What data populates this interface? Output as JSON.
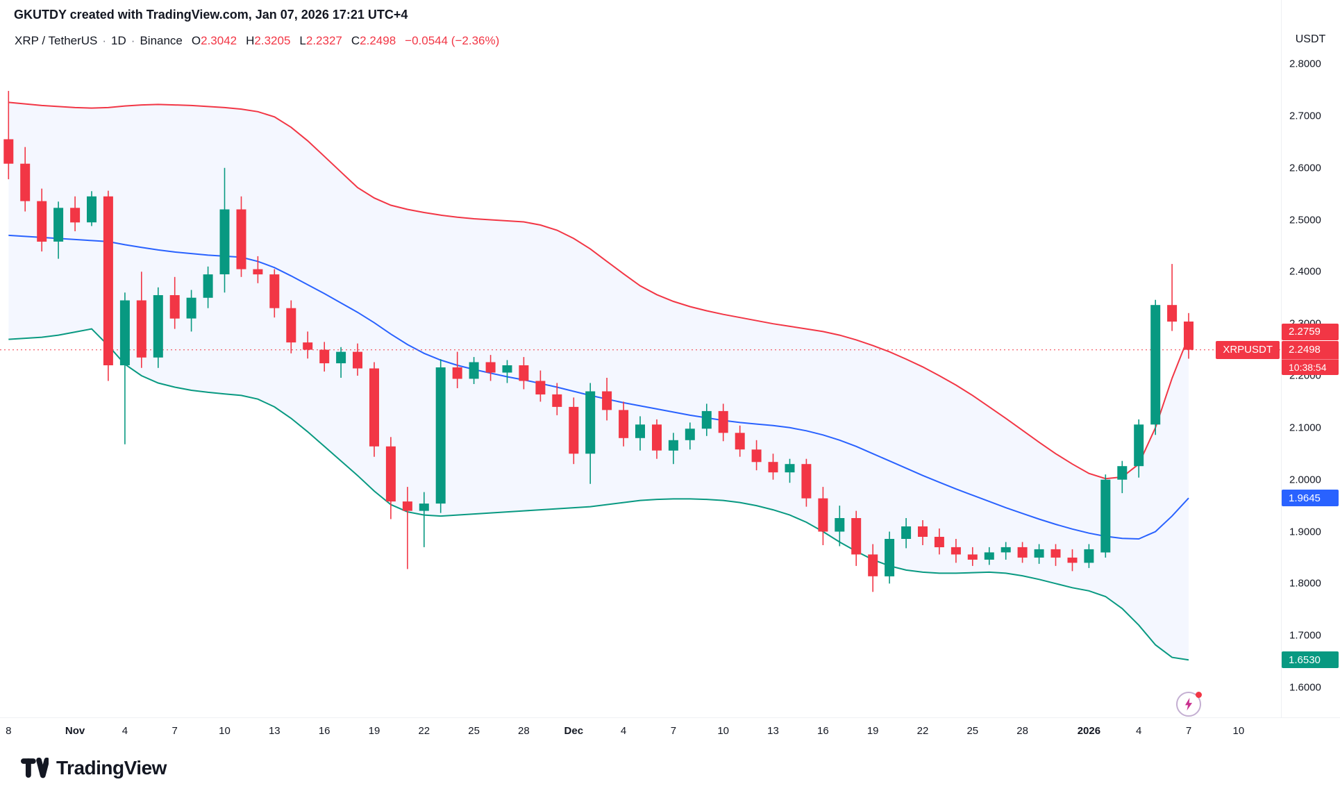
{
  "attribution": "GKUTDY created with TradingView.com, Jan 07, 2026 17:21 UTC+4",
  "legend": {
    "symbol": "XRP / TetherUS",
    "sep": "·",
    "interval": "1D",
    "exchange": "Binance",
    "o_label": "O",
    "o": "2.3042",
    "h_label": "H",
    "h": "2.3205",
    "l_label": "L",
    "l": "2.2327",
    "c_label": "C",
    "c": "2.2498",
    "change": "−0.0544 (−2.36%)",
    "values_color": "#F23645"
  },
  "price_axis": {
    "currency": "USDT",
    "labels": [
      "2.8000",
      "2.7000",
      "2.6000",
      "2.5000",
      "2.4000",
      "2.3000",
      "2.2000",
      "2.1000",
      "2.0000",
      "1.9000",
      "1.8000",
      "1.7000",
      "1.6000"
    ]
  },
  "time_axis": {
    "ticks": [
      [
        "8",
        0,
        0
      ],
      [
        "Nov",
        4,
        1
      ],
      [
        "4",
        7,
        0
      ],
      [
        "7",
        10,
        0
      ],
      [
        "10",
        13,
        0
      ],
      [
        "13",
        16,
        0
      ],
      [
        "16",
        19,
        0
      ],
      [
        "19",
        22,
        0
      ],
      [
        "22",
        25,
        0
      ],
      [
        "25",
        28,
        0
      ],
      [
        "28",
        31,
        0
      ],
      [
        "Dec",
        34,
        1
      ],
      [
        "4",
        37,
        0
      ],
      [
        "7",
        40,
        0
      ],
      [
        "10",
        43,
        0
      ],
      [
        "13",
        46,
        0
      ],
      [
        "16",
        49,
        0
      ],
      [
        "19",
        52,
        0
      ],
      [
        "22",
        55,
        0
      ],
      [
        "25",
        58,
        0
      ],
      [
        "28",
        61,
        0
      ],
      [
        "2026",
        65,
        1
      ],
      [
        "4",
        68,
        0
      ],
      [
        "7",
        71,
        0
      ],
      [
        "10",
        74,
        0
      ]
    ]
  },
  "badges": {
    "upper_band": {
      "text": "2.2759",
      "price": 2.2759,
      "color": "#F23645"
    },
    "symbol_label": "XRPUSDT",
    "last_price": {
      "text": "2.2498",
      "price": 2.2498,
      "color": "#F23645"
    },
    "countdown": "10:38:54",
    "basis_band": {
      "text": "1.9645",
      "price": 1.9645,
      "color": "#2962FF"
    },
    "lower_band": {
      "text": "1.6530",
      "price": 1.653,
      "color": "#089981"
    }
  },
  "footer": {
    "brand": "TradingView"
  },
  "ui": {
    "flash_icon": "#C9308F",
    "notification_dot": "#F23645",
    "text": "#131722"
  },
  "chart_data": {
    "type": "candlestick",
    "title": "XRP / TetherUS · 1D · Binance with Bollinger Bands",
    "ylabel": "Price (USDT)",
    "ylim": [
      1.6,
      2.8
    ],
    "indicator": "Bollinger Bands",
    "legend_position": "top-left",
    "grid": false,
    "colors": {
      "up": "#089981",
      "down": "#F23645",
      "upper": "#F23645",
      "basis": "#2962FF",
      "lower": "#089981",
      "band_fill": "rgba(41,98,255,0.05)"
    },
    "candles": [
      [
        "Oct 28",
        2.655,
        2.748,
        2.578,
        2.608
      ],
      [
        "Oct 29",
        2.608,
        2.64,
        2.516,
        2.536
      ],
      [
        "Oct 30",
        2.536,
        2.56,
        2.439,
        2.458
      ],
      [
        "Oct 31",
        2.458,
        2.535,
        2.425,
        2.523
      ],
      [
        "Nov 1",
        2.523,
        2.545,
        2.478,
        2.495
      ],
      [
        "Nov 2",
        2.495,
        2.555,
        2.488,
        2.545
      ],
      [
        "Nov 3",
        2.545,
        2.556,
        2.19,
        2.22
      ],
      [
        "Nov 4",
        2.22,
        2.36,
        2.068,
        2.345
      ],
      [
        "Nov 5",
        2.345,
        2.4,
        2.215,
        2.235
      ],
      [
        "Nov 6",
        2.235,
        2.37,
        2.215,
        2.355
      ],
      [
        "Nov 7",
        2.355,
        2.39,
        2.29,
        2.31
      ],
      [
        "Nov 8",
        2.31,
        2.365,
        2.285,
        2.35
      ],
      [
        "Nov 9",
        2.35,
        2.41,
        2.33,
        2.395
      ],
      [
        "Nov 10",
        2.395,
        2.6,
        2.36,
        2.52
      ],
      [
        "Nov 11",
        2.52,
        2.545,
        2.39,
        2.405
      ],
      [
        "Nov 12",
        2.405,
        2.43,
        2.378,
        2.395
      ],
      [
        "Nov 13",
        2.395,
        2.405,
        2.312,
        2.33
      ],
      [
        "Nov 14",
        2.33,
        2.345,
        2.243,
        2.264
      ],
      [
        "Nov 15",
        2.264,
        2.285,
        2.233,
        2.25
      ],
      [
        "Nov 16",
        2.25,
        2.265,
        2.208,
        2.224
      ],
      [
        "Nov 17",
        2.224,
        2.255,
        2.196,
        2.246
      ],
      [
        "Nov 18",
        2.246,
        2.262,
        2.2,
        2.214
      ],
      [
        "Nov 19",
        2.214,
        2.226,
        2.044,
        2.064
      ],
      [
        "Nov 20",
        2.064,
        2.082,
        1.924,
        1.958
      ],
      [
        "Nov 21",
        1.958,
        1.986,
        1.828,
        1.94
      ],
      [
        "Nov 22",
        1.94,
        1.976,
        1.87,
        1.954
      ],
      [
        "Nov 23",
        1.954,
        2.232,
        1.936,
        2.216
      ],
      [
        "Nov 24",
        2.216,
        2.246,
        2.176,
        2.194
      ],
      [
        "Nov 25",
        2.194,
        2.236,
        2.184,
        2.226
      ],
      [
        "Nov 26",
        2.226,
        2.24,
        2.19,
        2.206
      ],
      [
        "Nov 27",
        2.206,
        2.23,
        2.186,
        2.22
      ],
      [
        "Nov 28",
        2.22,
        2.236,
        2.174,
        2.19
      ],
      [
        "Nov 29",
        2.19,
        2.21,
        2.15,
        2.164
      ],
      [
        "Nov 30",
        2.164,
        2.186,
        2.124,
        2.14
      ],
      [
        "Dec 1",
        2.14,
        2.158,
        2.03,
        2.05
      ],
      [
        "Dec 2",
        2.05,
        2.186,
        1.992,
        2.17
      ],
      [
        "Dec 3",
        2.17,
        2.196,
        2.114,
        2.134
      ],
      [
        "Dec 4",
        2.134,
        2.15,
        2.064,
        2.08
      ],
      [
        "Dec 5",
        2.08,
        2.122,
        2.056,
        2.106
      ],
      [
        "Dec 6",
        2.106,
        2.116,
        2.04,
        2.056
      ],
      [
        "Dec 7",
        2.056,
        2.09,
        2.03,
        2.076
      ],
      [
        "Dec 8",
        2.076,
        2.11,
        2.058,
        2.098
      ],
      [
        "Dec 9",
        2.098,
        2.146,
        2.084,
        2.132
      ],
      [
        "Dec 10",
        2.132,
        2.146,
        2.074,
        2.09
      ],
      [
        "Dec 11",
        2.09,
        2.104,
        2.044,
        2.058
      ],
      [
        "Dec 12",
        2.058,
        2.076,
        2.018,
        2.034
      ],
      [
        "Dec 13",
        2.034,
        2.05,
        2.0,
        2.014
      ],
      [
        "Dec 14",
        2.014,
        2.04,
        1.994,
        2.03
      ],
      [
        "Dec 15",
        2.03,
        2.04,
        1.948,
        1.964
      ],
      [
        "Dec 16",
        1.964,
        1.986,
        1.874,
        1.9
      ],
      [
        "Dec 17",
        1.9,
        1.95,
        1.872,
        1.926
      ],
      [
        "Dec 18",
        1.926,
        1.94,
        1.834,
        1.856
      ],
      [
        "Dec 19",
        1.856,
        1.876,
        1.784,
        1.814
      ],
      [
        "Dec 20",
        1.814,
        1.9,
        1.8,
        1.886
      ],
      [
        "Dec 21",
        1.886,
        1.926,
        1.868,
        1.91
      ],
      [
        "Dec 22",
        1.91,
        1.922,
        1.874,
        1.89
      ],
      [
        "Dec 23",
        1.89,
        1.906,
        1.856,
        1.87
      ],
      [
        "Dec 24",
        1.87,
        1.886,
        1.84,
        1.856
      ],
      [
        "Dec 25",
        1.856,
        1.87,
        1.834,
        1.846
      ],
      [
        "Dec 26",
        1.846,
        1.87,
        1.836,
        1.86
      ],
      [
        "Dec 27",
        1.86,
        1.88,
        1.846,
        1.87
      ],
      [
        "Dec 28",
        1.87,
        1.88,
        1.84,
        1.85
      ],
      [
        "Dec 29",
        1.85,
        1.876,
        1.838,
        1.866
      ],
      [
        "Dec 30",
        1.866,
        1.876,
        1.834,
        1.85
      ],
      [
        "Dec 31",
        1.85,
        1.866,
        1.824,
        1.84
      ],
      [
        "Jan 1",
        1.84,
        1.876,
        1.83,
        1.866
      ],
      [
        "Jan 2",
        1.86,
        2.01,
        1.85,
        2.0
      ],
      [
        "Jan 3",
        2.0,
        2.036,
        1.974,
        2.026
      ],
      [
        "Jan 4",
        2.026,
        2.116,
        2.004,
        2.106
      ],
      [
        "Jan 5",
        2.106,
        2.346,
        2.086,
        2.336
      ],
      [
        "Jan 6",
        2.336,
        2.415,
        2.286,
        2.304
      ],
      [
        "Jan 7",
        2.3042,
        2.3205,
        2.2327,
        2.2498
      ]
    ],
    "bands": {
      "upper": [
        2.726,
        2.723,
        2.72,
        2.718,
        2.716,
        2.715,
        2.716,
        2.719,
        2.721,
        2.722,
        2.721,
        2.72,
        2.718,
        2.716,
        2.713,
        2.708,
        2.698,
        2.678,
        2.652,
        2.622,
        2.592,
        2.562,
        2.542,
        2.528,
        2.52,
        2.514,
        2.509,
        2.505,
        2.502,
        2.5,
        2.498,
        2.496,
        2.49,
        2.48,
        2.464,
        2.444,
        2.42,
        2.396,
        2.373,
        2.356,
        2.343,
        2.333,
        2.325,
        2.318,
        2.312,
        2.306,
        2.3,
        2.295,
        2.29,
        2.285,
        2.278,
        2.269,
        2.258,
        2.246,
        2.232,
        2.217,
        2.2,
        2.182,
        2.162,
        2.14,
        2.118,
        2.095,
        2.072,
        2.05,
        2.03,
        2.012,
        2.002,
        2.005,
        2.03,
        2.1,
        2.195,
        2.2759
      ],
      "basis": [
        2.47,
        2.468,
        2.466,
        2.464,
        2.462,
        2.46,
        2.458,
        2.452,
        2.447,
        2.442,
        2.438,
        2.435,
        2.432,
        2.43,
        2.428,
        2.42,
        2.408,
        2.392,
        2.375,
        2.358,
        2.34,
        2.322,
        2.302,
        2.28,
        2.26,
        2.243,
        2.23,
        2.22,
        2.212,
        2.205,
        2.198,
        2.192,
        2.185,
        2.178,
        2.17,
        2.162,
        2.155,
        2.148,
        2.142,
        2.136,
        2.13,
        2.124,
        2.119,
        2.114,
        2.11,
        2.107,
        2.104,
        2.1,
        2.094,
        2.086,
        2.076,
        2.064,
        2.05,
        2.036,
        2.022,
        2.008,
        1.995,
        1.982,
        1.97,
        1.958,
        1.946,
        1.935,
        1.924,
        1.914,
        1.905,
        1.897,
        1.891,
        1.887,
        1.886,
        1.9,
        1.93,
        1.9645
      ],
      "lower": [
        2.27,
        2.272,
        2.274,
        2.278,
        2.284,
        2.29,
        2.258,
        2.222,
        2.2,
        2.186,
        2.178,
        2.172,
        2.168,
        2.165,
        2.162,
        2.155,
        2.14,
        2.118,
        2.092,
        2.064,
        2.036,
        2.008,
        1.978,
        1.952,
        1.938,
        1.932,
        1.93,
        1.932,
        1.934,
        1.936,
        1.938,
        1.94,
        1.942,
        1.944,
        1.946,
        1.948,
        1.952,
        1.956,
        1.96,
        1.962,
        1.963,
        1.963,
        1.962,
        1.96,
        1.956,
        1.95,
        1.942,
        1.932,
        1.918,
        1.9,
        1.88,
        1.862,
        1.846,
        1.834,
        1.826,
        1.822,
        1.82,
        1.82,
        1.821,
        1.822,
        1.82,
        1.815,
        1.808,
        1.8,
        1.792,
        1.786,
        1.775,
        1.752,
        1.72,
        1.682,
        1.658,
        1.653
      ]
    }
  }
}
